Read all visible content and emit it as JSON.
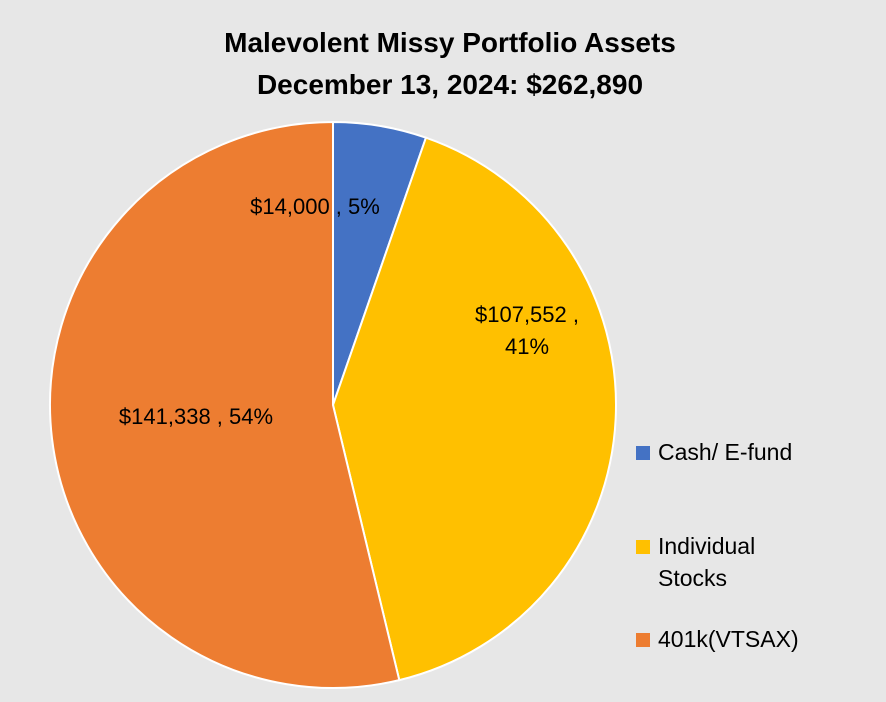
{
  "chart_data": {
    "type": "pie",
    "title": "Malevolent Missy Portfolio Assets",
    "subtitle": "December 13, 2024:  $262,890",
    "categories": [
      "Cash/ E-fund",
      "Individual Stocks",
      "401k(VTSAX)"
    ],
    "values": [
      14000,
      107552,
      141338
    ],
    "percentages": [
      5,
      41,
      54
    ],
    "data_labels": [
      "$14,000 , 5%",
      "$107,552 , 41%",
      "$141,338 , 54%"
    ],
    "colors": [
      "#4472c4",
      "#ffc000",
      "#ed7d31"
    ],
    "legend_position": "right",
    "start_angle": "12 o'clock, clockwise"
  },
  "legend": {
    "items": [
      {
        "label": "Cash/ E-fund",
        "color": "#4472c4"
      },
      {
        "label": "Individual Stocks",
        "color": "#ffc000"
      },
      {
        "label": "401k(VTSAX)",
        "color": "#ed7d31"
      }
    ]
  },
  "background_color": "#e7e7e7"
}
